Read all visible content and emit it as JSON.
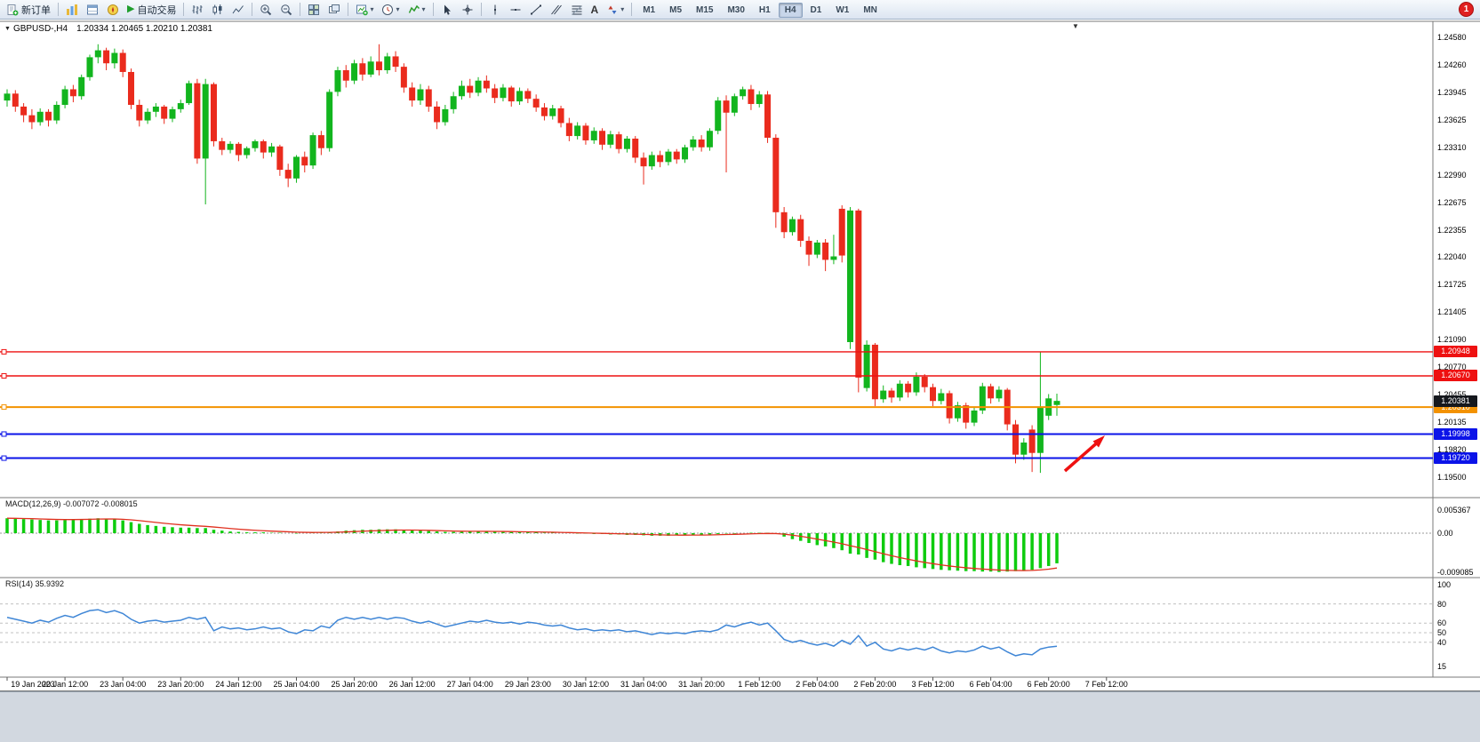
{
  "toolbar": {
    "new_order": "新订单",
    "autotrade": "自动交易",
    "timeframes": [
      "M1",
      "M5",
      "M15",
      "M30",
      "H1",
      "H4",
      "D1",
      "W1",
      "MN"
    ],
    "active_timeframe": "H4",
    "notification": "1"
  },
  "chart": {
    "symbol_period": "GBPUSD-,H4",
    "ohlc": "1.20334 1.20465 1.20210 1.20381",
    "dropdown_marker": "▼",
    "shift_marker": "▼",
    "price_axis": [
      "1.24580",
      "1.24260",
      "1.23945",
      "1.23625",
      "1.23310",
      "1.22990",
      "1.22675",
      "1.22355",
      "1.22040",
      "1.21725",
      "1.21405",
      "1.21090",
      "1.20770",
      "1.20455",
      "1.20135",
      "1.19820",
      "1.19500"
    ],
    "levels": [
      {
        "label": "1.20948",
        "price": 1.20948,
        "color": "#ee1111",
        "width": 1.4
      },
      {
        "label": "1.20670",
        "price": 1.2067,
        "color": "#ee1111",
        "width": 1.4
      },
      {
        "label": "1.20310",
        "price": 1.2031,
        "color": "#f39200",
        "width": 2
      },
      {
        "label": "1.19998",
        "price": 1.19998,
        "color": "#0b13e8",
        "width": 2
      },
      {
        "label": "1.19720",
        "price": 1.1972,
        "color": "#0b13e8",
        "width": 2
      }
    ],
    "current_price": {
      "label": "1.20381",
      "price": 1.20381,
      "bg": "#15181d"
    }
  },
  "macd": {
    "label": "MACD(12,26,9) -0.007072 -0.008015",
    "axis": [
      "0.005367",
      "0.00",
      "-0.009085"
    ]
  },
  "rsi": {
    "label": "RSI(14) 35.9392",
    "axis": [
      "100",
      "80",
      "60",
      "50",
      "40",
      "15"
    ],
    "dashed_levels": [
      80,
      60,
      50,
      40
    ]
  },
  "time_axis": [
    "19 Jan 2023",
    "20 Jan 12:00",
    "23 Jan 04:00",
    "23 Jan 20:00",
    "24 Jan 12:00",
    "25 Jan 04:00",
    "25 Jan 20:00",
    "26 Jan 12:00",
    "27 Jan 04:00",
    "29 Jan 23:00",
    "30 Jan 12:00",
    "31 Jan 04:00",
    "31 Jan 20:00",
    "1 Feb 12:00",
    "2 Feb 04:00",
    "2 Feb 20:00",
    "3 Feb 12:00",
    "6 Feb 04:00",
    "6 Feb 20:00",
    "7 Feb 12:00"
  ],
  "chart_data": {
    "type": "candlestick",
    "symbol": "GBPUSD",
    "timeframe": "H4",
    "colors": {
      "up": "#12b51e",
      "down": "#ea2b1d",
      "macd_bar": "#0ecc0e",
      "macd_signal": "#e0301f",
      "rsi_line": "#3f86d6"
    },
    "candles": [
      [
        1.2385,
        1.2398,
        1.2378,
        1.2393
      ],
      [
        1.2393,
        1.2397,
        1.2372,
        1.2378
      ],
      [
        1.2378,
        1.2382,
        1.236,
        1.2368
      ],
      [
        1.2368,
        1.2375,
        1.2352,
        1.236
      ],
      [
        1.236,
        1.2376,
        1.2356,
        1.2372
      ],
      [
        1.2372,
        1.2375,
        1.2355,
        1.2362
      ],
      [
        1.2362,
        1.2384,
        1.2358,
        1.238
      ],
      [
        1.238,
        1.2402,
        1.2376,
        1.2398
      ],
      [
        1.2398,
        1.2403,
        1.2383,
        1.239
      ],
      [
        1.239,
        1.2415,
        1.2386,
        1.2412
      ],
      [
        1.2412,
        1.2438,
        1.2408,
        1.2435
      ],
      [
        1.2435,
        1.245,
        1.2428,
        1.2443
      ],
      [
        1.2443,
        1.2446,
        1.242,
        1.2428
      ],
      [
        1.2428,
        1.2445,
        1.2422,
        1.244
      ],
      [
        1.244,
        1.2444,
        1.2412,
        1.2418
      ],
      [
        1.2418,
        1.2422,
        1.2375,
        1.238
      ],
      [
        1.238,
        1.2386,
        1.2355,
        1.2362
      ],
      [
        1.2362,
        1.2376,
        1.2358,
        1.2372
      ],
      [
        1.2372,
        1.2382,
        1.2366,
        1.2378
      ],
      [
        1.2378,
        1.238,
        1.2358,
        1.2364
      ],
      [
        1.2364,
        1.2378,
        1.236,
        1.2375
      ],
      [
        1.2375,
        1.2386,
        1.2371,
        1.2382
      ],
      [
        1.2382,
        1.2408,
        1.238,
        1.2405
      ],
      [
        1.2405,
        1.241,
        1.2312,
        1.2318
      ],
      [
        1.2318,
        1.241,
        1.2265,
        1.2404
      ],
      [
        1.2404,
        1.2406,
        1.2332,
        1.2338
      ],
      [
        1.2338,
        1.2342,
        1.2322,
        1.2328
      ],
      [
        1.2328,
        1.2338,
        1.2324,
        1.2335
      ],
      [
        1.2335,
        1.2337,
        1.2315,
        1.2322
      ],
      [
        1.2322,
        1.2332,
        1.2318,
        1.233
      ],
      [
        1.233,
        1.234,
        1.2326,
        1.2338
      ],
      [
        1.2338,
        1.234,
        1.2318,
        1.2325
      ],
      [
        1.2325,
        1.2336,
        1.232,
        1.2332
      ],
      [
        1.2332,
        1.2334,
        1.2298,
        1.2305
      ],
      [
        1.2305,
        1.2312,
        1.2285,
        1.2295
      ],
      [
        1.2295,
        1.2322,
        1.229,
        1.232
      ],
      [
        1.232,
        1.2326,
        1.2302,
        1.231
      ],
      [
        1.231,
        1.2348,
        1.2306,
        1.2345
      ],
      [
        1.2345,
        1.235,
        1.2322,
        1.233
      ],
      [
        1.233,
        1.2398,
        1.2326,
        1.2395
      ],
      [
        1.2395,
        1.2424,
        1.239,
        1.242
      ],
      [
        1.242,
        1.2426,
        1.24,
        1.2408
      ],
      [
        1.2408,
        1.2432,
        1.2404,
        1.2428
      ],
      [
        1.2428,
        1.2434,
        1.2408,
        1.2415
      ],
      [
        1.2415,
        1.2436,
        1.2412,
        1.243
      ],
      [
        1.243,
        1.245,
        1.2414,
        1.242
      ],
      [
        1.242,
        1.244,
        1.2416,
        1.2436
      ],
      [
        1.2436,
        1.2442,
        1.2418,
        1.2424
      ],
      [
        1.2424,
        1.2428,
        1.2394,
        1.24
      ],
      [
        1.24,
        1.2406,
        1.2378,
        1.2385
      ],
      [
        1.2385,
        1.2404,
        1.238,
        1.2398
      ],
      [
        1.2398,
        1.2402,
        1.2372,
        1.2378
      ],
      [
        1.2378,
        1.2384,
        1.2352,
        1.236
      ],
      [
        1.236,
        1.238,
        1.2356,
        1.2375
      ],
      [
        1.2375,
        1.2395,
        1.237,
        1.239
      ],
      [
        1.239,
        1.2408,
        1.2386,
        1.2402
      ],
      [
        1.2402,
        1.241,
        1.2388,
        1.2394
      ],
      [
        1.2394,
        1.2412,
        1.239,
        1.2408
      ],
      [
        1.2408,
        1.2414,
        1.2394,
        1.2399
      ],
      [
        1.2399,
        1.2404,
        1.2382,
        1.2388
      ],
      [
        1.2388,
        1.2404,
        1.2384,
        1.24
      ],
      [
        1.24,
        1.2402,
        1.2378,
        1.2384
      ],
      [
        1.2384,
        1.24,
        1.238,
        1.2396
      ],
      [
        1.2396,
        1.2399,
        1.2382,
        1.2387
      ],
      [
        1.2387,
        1.2392,
        1.2372,
        1.2377
      ],
      [
        1.2377,
        1.2382,
        1.2362,
        1.2367
      ],
      [
        1.2367,
        1.238,
        1.2363,
        1.2376
      ],
      [
        1.2376,
        1.2379,
        1.2354,
        1.2359
      ],
      [
        1.2359,
        1.2365,
        1.2338,
        1.2344
      ],
      [
        1.2344,
        1.236,
        1.234,
        1.2356
      ],
      [
        1.2356,
        1.2359,
        1.2334,
        1.2339
      ],
      [
        1.2339,
        1.2354,
        1.2335,
        1.235
      ],
      [
        1.235,
        1.2353,
        1.2328,
        1.2334
      ],
      [
        1.2334,
        1.235,
        1.233,
        1.2346
      ],
      [
        1.2346,
        1.2349,
        1.2324,
        1.2329
      ],
      [
        1.2329,
        1.2344,
        1.2325,
        1.2341
      ],
      [
        1.2341,
        1.2344,
        1.2313,
        1.2319
      ],
      [
        1.2319,
        1.2325,
        1.2288,
        1.2309
      ],
      [
        1.2309,
        1.2326,
        1.2305,
        1.2322
      ],
      [
        1.2322,
        1.2327,
        1.2308,
        1.2314
      ],
      [
        1.2314,
        1.2329,
        1.231,
        1.2326
      ],
      [
        1.2326,
        1.2329,
        1.2312,
        1.2317
      ],
      [
        1.2317,
        1.2334,
        1.2313,
        1.2331
      ],
      [
        1.2331,
        1.2344,
        1.2327,
        1.234
      ],
      [
        1.234,
        1.2345,
        1.2326,
        1.2331
      ],
      [
        1.2331,
        1.2353,
        1.2327,
        1.235
      ],
      [
        1.235,
        1.2389,
        1.2346,
        1.2385
      ],
      [
        1.2385,
        1.2391,
        1.2302,
        1.2371
      ],
      [
        1.2371,
        1.2393,
        1.2367,
        1.239
      ],
      [
        1.239,
        1.2401,
        1.2386,
        1.2398
      ],
      [
        1.2398,
        1.2403,
        1.2374,
        1.2381
      ],
      [
        1.2381,
        1.2396,
        1.2377,
        1.2392
      ],
      [
        1.2392,
        1.2396,
        1.2336,
        1.2342
      ],
      [
        1.2342,
        1.2346,
        1.2238,
        1.2256
      ],
      [
        1.2256,
        1.2262,
        1.2226,
        1.2233
      ],
      [
        1.2233,
        1.2251,
        1.2229,
        1.2248
      ],
      [
        1.2248,
        1.2253,
        1.2216,
        1.2223
      ],
      [
        1.2223,
        1.2228,
        1.2194,
        1.2207
      ],
      [
        1.2207,
        1.2224,
        1.2203,
        1.2221
      ],
      [
        1.2221,
        1.2225,
        1.2188,
        1.2201
      ],
      [
        1.2201,
        1.223,
        1.2196,
        1.2205
      ],
      [
        1.226,
        1.2264,
        1.2198,
        1.2206
      ],
      [
        1.2106,
        1.2262,
        1.2098,
        1.2258
      ],
      [
        1.2258,
        1.226,
        1.2048,
        1.2065
      ],
      [
        1.2053,
        1.2108,
        1.2049,
        1.2103
      ],
      [
        1.2103,
        1.2105,
        1.2032,
        1.204
      ],
      [
        1.204,
        1.2056,
        1.2036,
        1.205
      ],
      [
        1.205,
        1.2053,
        1.2036,
        1.2042
      ],
      [
        1.2042,
        1.2062,
        1.2038,
        1.2058
      ],
      [
        1.2058,
        1.2061,
        1.2042,
        1.2048
      ],
      [
        1.2048,
        1.2071,
        1.2044,
        1.2066
      ],
      [
        1.2066,
        1.2069,
        1.2048,
        1.2054
      ],
      [
        1.2054,
        1.2058,
        1.2032,
        1.2038
      ],
      [
        1.2038,
        1.2052,
        1.2034,
        1.2047
      ],
      [
        1.2047,
        1.205,
        1.2012,
        1.2018
      ],
      [
        1.2018,
        1.2037,
        1.2014,
        1.2033
      ],
      [
        1.2033,
        1.2036,
        1.2006,
        1.2013
      ],
      [
        1.2013,
        1.2031,
        1.2009,
        1.2027
      ],
      [
        1.2027,
        1.2059,
        1.2023,
        1.2055
      ],
      [
        1.2055,
        1.2058,
        1.2035,
        1.2041
      ],
      [
        1.2041,
        1.2055,
        1.2037,
        1.2051
      ],
      [
        1.2051,
        1.2053,
        1.2004,
        1.2011
      ],
      [
        1.2011,
        1.2016,
        1.1966,
        1.1976
      ],
      [
        1.1976,
        1.1995,
        1.197,
        1.199
      ],
      [
        1.2005,
        1.201,
        1.1956,
        1.1978
      ],
      [
        1.1978,
        1.2095,
        1.1955,
        1.203
      ],
      [
        1.2021,
        1.2046,
        1.2016,
        1.2041
      ],
      [
        1.20334,
        1.20465,
        1.2021,
        1.20381
      ]
    ],
    "macd_histogram": [
      0.0035,
      0.0034,
      0.0033,
      0.0032,
      0.0031,
      0.003,
      0.003,
      0.0031,
      0.0032,
      0.0033,
      0.0034,
      0.0035,
      0.0034,
      0.0033,
      0.003,
      0.0026,
      0.0022,
      0.0019,
      0.0017,
      0.0015,
      0.0014,
      0.0013,
      0.0013,
      0.0012,
      0.0012,
      0.0008,
      0.0006,
      0.0004,
      0.0003,
      0.0002,
      0.0002,
      0.0002,
      0.0001,
      0.0001,
      0.0,
      -0.0001,
      0.0,
      0.0001,
      0.0002,
      0.0002,
      0.0004,
      0.0006,
      0.0007,
      0.0008,
      0.0008,
      0.0009,
      0.0009,
      0.0009,
      0.0008,
      0.0007,
      0.0006,
      0.0005,
      0.0004,
      0.0003,
      0.0003,
      0.0003,
      0.0004,
      0.0004,
      0.0004,
      0.0004,
      0.0003,
      0.0003,
      0.0002,
      0.0002,
      0.0002,
      0.0001,
      0.0001,
      0.0,
      0.0,
      -0.0001,
      -0.0001,
      -0.0002,
      -0.0002,
      -0.0003,
      -0.0003,
      -0.0004,
      -0.0004,
      -0.0005,
      -0.0006,
      -0.0006,
      -0.0006,
      -0.0005,
      -0.0005,
      -0.0004,
      -0.0004,
      -0.0003,
      -0.0002,
      -0.0001,
      -0.0001,
      0.0,
      0.0001,
      0.0001,
      0.0001,
      -0.0002,
      -0.0008,
      -0.0014,
      -0.0018,
      -0.0023,
      -0.0028,
      -0.0031,
      -0.0035,
      -0.004,
      -0.0048,
      -0.005,
      -0.0058,
      -0.0062,
      -0.0068,
      -0.0072,
      -0.0075,
      -0.0077,
      -0.008,
      -0.0082,
      -0.0084,
      -0.0086,
      -0.0087,
      -0.0088,
      -0.0089,
      -0.0089,
      -0.009,
      -0.009,
      -0.0091,
      -0.009,
      -0.0089,
      -0.0088,
      -0.0086,
      -0.0082,
      -0.0077,
      -0.00707
    ],
    "rsi": [
      66,
      64,
      62,
      60,
      63,
      61,
      65,
      68,
      66,
      70,
      73,
      74,
      71,
      73,
      70,
      64,
      60,
      62,
      63,
      61,
      62,
      63,
      66,
      64,
      66,
      52,
      56,
      54,
      55,
      53,
      54,
      56,
      54,
      55,
      51,
      49,
      53,
      52,
      57,
      55,
      63,
      66,
      64,
      66,
      64,
      66,
      64,
      66,
      65,
      62,
      60,
      62,
      59,
      56,
      58,
      60,
      62,
      61,
      63,
      61,
      60,
      61,
      59,
      61,
      60,
      58,
      57,
      58,
      55,
      53,
      54,
      52,
      53,
      52,
      53,
      51,
      52,
      50,
      48,
      50,
      49,
      50,
      49,
      51,
      52,
      51,
      53,
      58,
      56,
      59,
      61,
      58,
      60,
      52,
      43,
      40,
      42,
      39,
      37,
      39,
      36,
      42,
      38,
      47,
      36,
      40,
      33,
      31,
      34,
      32,
      34,
      32,
      35,
      31,
      29,
      31,
      30,
      32,
      36,
      33,
      35,
      30,
      26,
      28,
      27,
      33,
      35,
      35.9
    ]
  },
  "annotations": {
    "arrow": {
      "color": "#ee1111",
      "direction": "up-right"
    }
  }
}
